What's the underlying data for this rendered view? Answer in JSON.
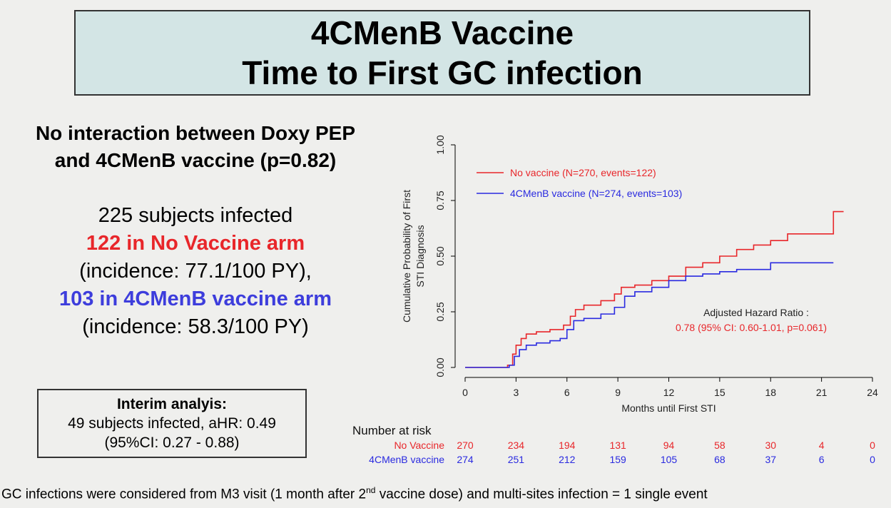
{
  "title": {
    "line1": "4CMenB Vaccine",
    "line2": "Time to First GC infection"
  },
  "interaction": {
    "line1": "No interaction between Doxy PEP",
    "line2": "and 4CMenB vaccine (p=0.82)"
  },
  "stats": {
    "total": "225 subjects infected",
    "no_vaccine": "122 in No Vaccine arm",
    "no_vaccine_incidence": "(incidence: 77.1/100 PY),",
    "vaccine": "103 in 4CMenB vaccine arm",
    "vaccine_incidence": "(incidence: 58.3/100 PY)"
  },
  "interim": {
    "heading": "Interim analyis:",
    "line1": "49 subjects infected, aHR: 0.49",
    "line2": "(95%CI: 0.27 - 0.88)"
  },
  "footnote": {
    "before_sup": "GC infections were considered from M3 visit (1 month after 2",
    "sup": "nd",
    "after_sup": " vaccine dose) and multi-sites infection = 1 single event"
  },
  "colors": {
    "no_vaccine": "#e8262a",
    "vaccine": "#2a2ae0",
    "no_vaccine_text": "#e8262a",
    "vaccine_text": "#3d3ddc"
  },
  "chart_data": {
    "type": "line",
    "step": true,
    "xlabel": "Months until First STI",
    "ylabel_line1": "Cumulative Probability of First",
    "ylabel_line2": "STI Diagnosis",
    "xlim": [
      0,
      24
    ],
    "ylim": [
      0,
      1
    ],
    "x_ticks": [
      0,
      3,
      6,
      9,
      12,
      15,
      18,
      21,
      24
    ],
    "y_ticks": [
      "0.00",
      "0.25",
      "0.50",
      "0.75",
      "1.00"
    ],
    "legend_position": "top-left",
    "series": [
      {
        "name": "No vaccine (N=270, events=122)",
        "color": "#e8262a",
        "points": [
          [
            0,
            0
          ],
          [
            2.2,
            0
          ],
          [
            2.5,
            0.01
          ],
          [
            2.8,
            0.06
          ],
          [
            3.0,
            0.1
          ],
          [
            3.3,
            0.13
          ],
          [
            3.6,
            0.15
          ],
          [
            4.2,
            0.16
          ],
          [
            5.0,
            0.17
          ],
          [
            5.8,
            0.19
          ],
          [
            6.2,
            0.23
          ],
          [
            6.5,
            0.26
          ],
          [
            7.0,
            0.28
          ],
          [
            8.0,
            0.3
          ],
          [
            8.8,
            0.33
          ],
          [
            9.2,
            0.36
          ],
          [
            10.0,
            0.37
          ],
          [
            11.0,
            0.39
          ],
          [
            12.0,
            0.41
          ],
          [
            13.0,
            0.45
          ],
          [
            14.0,
            0.47
          ],
          [
            15.0,
            0.5
          ],
          [
            16.0,
            0.53
          ],
          [
            17.0,
            0.55
          ],
          [
            18.0,
            0.57
          ],
          [
            19.0,
            0.6
          ],
          [
            21.0,
            0.6
          ],
          [
            21.7,
            0.6
          ],
          [
            21.7,
            0.7
          ],
          [
            22.3,
            0.7
          ]
        ]
      },
      {
        "name": "4CMenB vaccine (N=274, events=103)",
        "color": "#2a2ae0",
        "points": [
          [
            0,
            0
          ],
          [
            2.3,
            0
          ],
          [
            2.6,
            0.01
          ],
          [
            2.9,
            0.05
          ],
          [
            3.2,
            0.08
          ],
          [
            3.6,
            0.1
          ],
          [
            4.2,
            0.11
          ],
          [
            5.0,
            0.12
          ],
          [
            5.6,
            0.13
          ],
          [
            6.0,
            0.17
          ],
          [
            6.4,
            0.21
          ],
          [
            7.0,
            0.22
          ],
          [
            8.0,
            0.24
          ],
          [
            8.8,
            0.27
          ],
          [
            9.4,
            0.32
          ],
          [
            10.0,
            0.34
          ],
          [
            11.0,
            0.36
          ],
          [
            12.0,
            0.39
          ],
          [
            13.0,
            0.41
          ],
          [
            14.0,
            0.42
          ],
          [
            15.0,
            0.43
          ],
          [
            16.0,
            0.44
          ],
          [
            17.0,
            0.44
          ],
          [
            18.0,
            0.44
          ],
          [
            18.0,
            0.47
          ],
          [
            19.0,
            0.47
          ],
          [
            21.7,
            0.47
          ]
        ]
      }
    ],
    "annotation": {
      "line1": "Adjusted Hazard Ratio :",
      "line2": "0.78 (95% CI: 0.60-1.01, p=0.061)"
    },
    "risk_table": {
      "title": "Number at risk",
      "rows": [
        {
          "label": "No Vaccine",
          "color": "#e8262a",
          "values": [
            "270",
            "234",
            "194",
            "131",
            "94",
            "58",
            "30",
            "4",
            "0"
          ]
        },
        {
          "label": "4CMenB vaccine",
          "color": "#2a2ae0",
          "values": [
            "274",
            "251",
            "212",
            "159",
            "105",
            "68",
            "37",
            "6",
            "0"
          ]
        }
      ]
    }
  }
}
